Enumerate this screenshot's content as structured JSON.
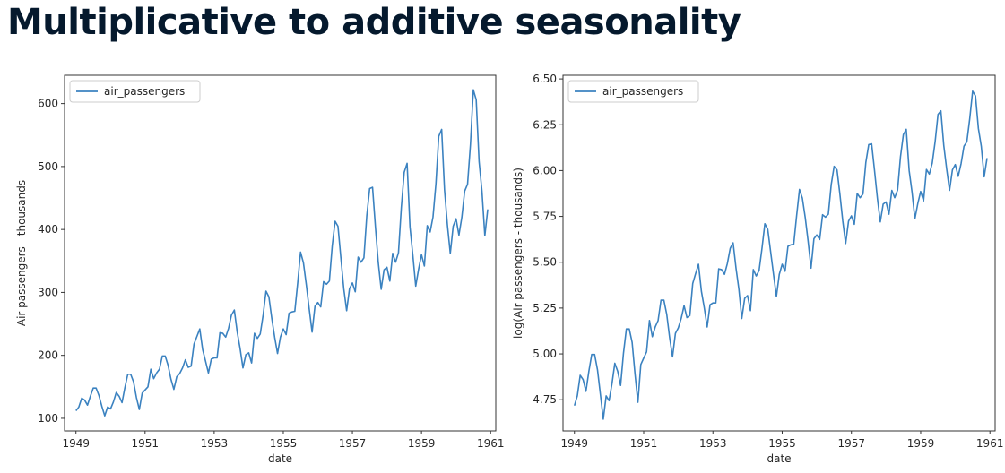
{
  "page": {
    "title": "Multiplicative to additive seasonality"
  },
  "colors": {
    "line": "#3b82c0",
    "axes": "#333333",
    "title": "#05192d"
  },
  "chart_data": [
    {
      "type": "line",
      "xlabel": "date",
      "ylabel": "Air passengers - thousands",
      "xlim": [
        1948.67,
        1961.15
      ],
      "ylim": [
        80,
        645
      ],
      "xticks": [
        1949,
        1951,
        1953,
        1955,
        1957,
        1959,
        1961
      ],
      "xtick_labels": [
        "1949",
        "1951",
        "1953",
        "1955",
        "1957",
        "1959",
        "1961"
      ],
      "yticks": [
        100,
        200,
        300,
        400,
        500,
        600
      ],
      "ytick_labels": [
        "100",
        "200",
        "300",
        "400",
        "500",
        "600"
      ],
      "legend": {
        "position": "top-left",
        "entries": [
          "air_passengers"
        ]
      },
      "series": [
        {
          "name": "air_passengers",
          "start_year": 1949,
          "step_months": 1,
          "values": [
            112,
            118,
            132,
            129,
            121,
            135,
            148,
            148,
            136,
            119,
            104,
            118,
            115,
            126,
            141,
            135,
            125,
            149,
            170,
            170,
            158,
            133,
            114,
            140,
            145,
            150,
            178,
            163,
            172,
            178,
            199,
            199,
            184,
            162,
            146,
            166,
            171,
            180,
            193,
            181,
            183,
            218,
            230,
            242,
            209,
            191,
            172,
            194,
            196,
            196,
            236,
            235,
            229,
            243,
            264,
            272,
            237,
            211,
            180,
            201,
            204,
            188,
            235,
            227,
            234,
            264,
            302,
            293,
            259,
            229,
            203,
            229,
            242,
            233,
            267,
            269,
            270,
            315,
            364,
            347,
            312,
            274,
            237,
            278,
            284,
            277,
            317,
            313,
            318,
            374,
            413,
            405,
            355,
            306,
            271,
            306,
            315,
            301,
            356,
            348,
            355,
            422,
            465,
            467,
            404,
            347,
            305,
            336,
            340,
            318,
            362,
            348,
            363,
            435,
            491,
            505,
            404,
            359,
            310,
            337,
            360,
            342,
            406,
            396,
            420,
            472,
            548,
            559,
            463,
            407,
            362,
            405,
            417,
            391,
            419,
            461,
            472,
            535,
            622,
            606,
            508,
            461,
            390,
            432
          ]
        }
      ]
    },
    {
      "type": "line",
      "xlabel": "date",
      "ylabel": "log(Air passengers - thousands)",
      "xlim": [
        1948.67,
        1961.15
      ],
      "ylim": [
        4.58,
        6.52
      ],
      "xticks": [
        1949,
        1951,
        1953,
        1955,
        1957,
        1959,
        1961
      ],
      "xtick_labels": [
        "1949",
        "1951",
        "1953",
        "1955",
        "1957",
        "1959",
        "1961"
      ],
      "yticks": [
        4.75,
        5.0,
        5.25,
        5.5,
        5.75,
        6.0,
        6.25,
        6.5
      ],
      "ytick_labels": [
        "4.75",
        "5.00",
        "5.25",
        "5.50",
        "5.75",
        "6.00",
        "6.25",
        "6.50"
      ],
      "legend": {
        "position": "top-left",
        "entries": [
          "air_passengers"
        ]
      },
      "series": [
        {
          "name": "air_passengers",
          "start_year": 1949,
          "step_months": 1,
          "values": [
            4.718,
            4.771,
            4.883,
            4.86,
            4.796,
            4.905,
            4.997,
            4.997,
            4.913,
            4.779,
            4.644,
            4.771,
            4.745,
            4.836,
            4.949,
            4.905,
            4.828,
            5.004,
            5.136,
            5.136,
            5.063,
            4.89,
            4.736,
            4.942,
            4.977,
            5.011,
            5.182,
            5.094,
            5.147,
            5.182,
            5.293,
            5.293,
            5.215,
            5.088,
            4.984,
            5.112,
            5.142,
            5.193,
            5.263,
            5.198,
            5.209,
            5.384,
            5.438,
            5.489,
            5.342,
            5.252,
            5.147,
            5.268,
            5.278,
            5.278,
            5.464,
            5.46,
            5.434,
            5.493,
            5.576,
            5.606,
            5.468,
            5.352,
            5.193,
            5.303,
            5.318,
            5.236,
            5.46,
            5.425,
            5.455,
            5.576,
            5.71,
            5.68,
            5.557,
            5.434,
            5.313,
            5.434,
            5.489,
            5.451,
            5.587,
            5.595,
            5.598,
            5.753,
            5.897,
            5.849,
            5.743,
            5.613,
            5.468,
            5.628,
            5.649,
            5.624,
            5.759,
            5.746,
            5.762,
            5.924,
            6.023,
            6.004,
            5.872,
            5.724,
            5.602,
            5.724,
            5.753,
            5.707,
            5.875,
            5.852,
            5.872,
            6.045,
            6.142,
            6.146,
            6.001,
            5.849,
            5.72,
            5.817,
            5.829,
            5.762,
            5.892,
            5.852,
            5.894,
            6.075,
            6.196,
            6.225,
            6.001,
            5.883,
            5.737,
            5.82,
            5.886,
            5.835,
            6.006,
            5.981,
            6.04,
            6.157,
            6.306,
            6.326,
            6.138,
            6.009,
            5.892,
            6.004,
            6.033,
            5.969,
            6.038,
            6.133,
            6.157,
            6.283,
            6.433,
            6.407,
            6.23,
            6.133,
            5.966,
            6.068
          ]
        }
      ]
    }
  ]
}
